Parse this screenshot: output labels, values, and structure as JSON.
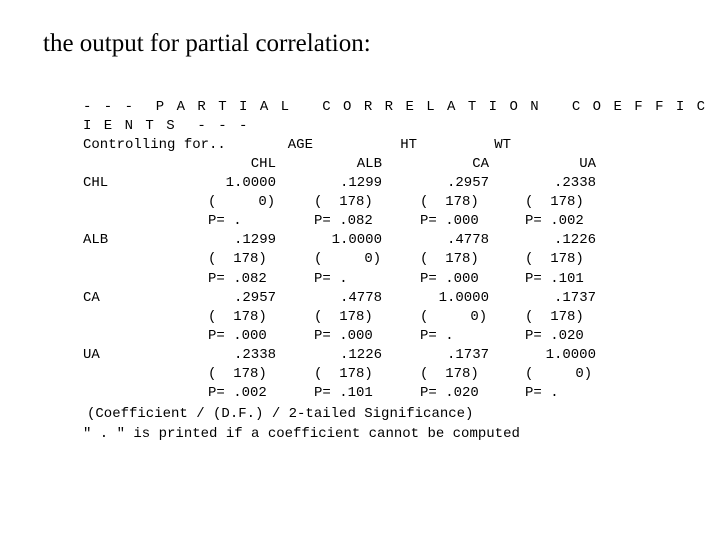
{
  "heading": "the output for partial correlation:",
  "banner": {
    "line1": "- - -  P A R T I A L   C O R R E L A T I O N   C O E F F I C",
    "line2": "I E N T S  - - -"
  },
  "controlling": {
    "label": "Controlling for..",
    "variables": [
      "AGE",
      "HT",
      "WT"
    ]
  },
  "columns": [
    "CHL",
    "ALB",
    "CA",
    "UA"
  ],
  "rows": [
    {
      "name": "CHL",
      "coef": [
        "1.0000",
        ".1299",
        ".2957",
        ".2338"
      ],
      "df": [
        "(     0)",
        "(  178)",
        "(  178)",
        "(  178)"
      ],
      "p": [
        "P= .",
        "P= .082",
        "P= .000",
        "P= .002"
      ]
    },
    {
      "name": "ALB",
      "coef": [
        ".1299",
        "1.0000",
        ".4778",
        ".1226"
      ],
      "df": [
        "(  178)",
        "(     0)",
        "(  178)",
        "(  178)"
      ],
      "p": [
        "P= .082",
        "P= .",
        "P= .000",
        "P= .101"
      ]
    },
    {
      "name": "CA",
      "coef": [
        ".2957",
        ".4778",
        "1.0000",
        ".1737"
      ],
      "df": [
        "(  178)",
        "(  178)",
        "(     0)",
        "(  178)"
      ],
      "p": [
        "P= .000",
        "P= .000",
        "P= .",
        "P= .020"
      ]
    },
    {
      "name": "UA",
      "coef": [
        ".2338",
        ".1226",
        ".1737",
        "1.0000"
      ],
      "df": [
        "(  178)",
        "(  178)",
        "(  178)",
        "(     0)"
      ],
      "p": [
        "P= .002",
        "P= .101",
        "P= .020",
        "P= ."
      ]
    }
  ],
  "footer": {
    "legend": "(Coefficient / (D.F.) / 2-tailed Significance)",
    "note": "\" . \" is printed if a coefficient cannot be computed"
  }
}
